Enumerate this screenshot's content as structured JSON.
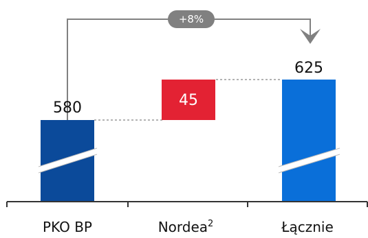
{
  "chart_data": {
    "type": "bar",
    "subtype": "waterfall",
    "categories": [
      {
        "label": "PKO BP",
        "sup": ""
      },
      {
        "label": "Nordea",
        "sup": "2"
      },
      {
        "label": "Łącznie",
        "sup": ""
      }
    ],
    "values": [
      580,
      45,
      625
    ],
    "value_labels": [
      "580",
      "45",
      "625"
    ],
    "bar_roles": [
      "base",
      "increment",
      "total"
    ],
    "axis_break": true,
    "growth_label": "+8%",
    "colors": {
      "base": "#0B4A9A",
      "increment": "#E32233",
      "total": "#0A6FD9",
      "connector": "#999999",
      "arrow": "#808080",
      "axis": "#333333",
      "text": "#111111"
    }
  }
}
